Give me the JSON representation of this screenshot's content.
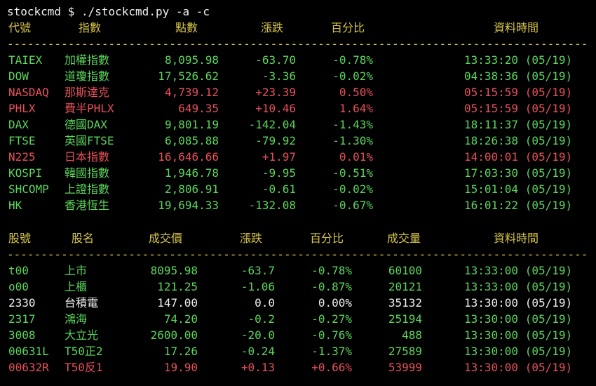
{
  "colors": {
    "background": "#000000",
    "white": "#f0f0f0",
    "green": "#5bd65b",
    "red": "#e8505a",
    "header": "#d8c64a"
  },
  "prompt": {
    "user": "stockcmd",
    "dollar": "$",
    "command": "./stockcmd.py -a -c"
  },
  "index_table": {
    "headers": {
      "code": "代號",
      "name": "指數",
      "points": "點數",
      "change": "漲跌",
      "percent": "百分比",
      "time": "資料時間"
    },
    "separator": "--------------------------------------------------------------------------------------------------------",
    "rows": [
      {
        "code": "TAIEX",
        "name": "加權指數",
        "points": "8,095.98",
        "change": "-63.70",
        "percent": "-0.78%",
        "time": "13:33:20 (05/19)",
        "color": "#5bd65b"
      },
      {
        "code": "DOW",
        "name": "道瓊指數",
        "points": "17,526.62",
        "change": "-3.36",
        "percent": "-0.02%",
        "time": "04:38:36 (05/19)",
        "color": "#5bd65b"
      },
      {
        "code": "NASDAQ",
        "name": "那斯達克",
        "points": "4,739.12",
        "change": "+23.39",
        "percent": "0.50%",
        "time": "05:15:59 (05/19)",
        "color": "#e8505a"
      },
      {
        "code": "PHLX",
        "name": "費半PHLX",
        "points": "649.35",
        "change": "+10.46",
        "percent": "1.64%",
        "time": "05:15:59 (05/19)",
        "color": "#e8505a"
      },
      {
        "code": "DAX",
        "name": "德國DAX",
        "points": "9,801.19",
        "change": "-142.04",
        "percent": "-1.43%",
        "time": "18:11:37 (05/19)",
        "color": "#5bd65b"
      },
      {
        "code": "FTSE",
        "name": "英國FTSE",
        "points": "6,085.88",
        "change": "-79.92",
        "percent": "-1.30%",
        "time": "18:26:38 (05/19)",
        "color": "#5bd65b"
      },
      {
        "code": "N225",
        "name": "日本指數",
        "points": "16,646.66",
        "change": "+1.97",
        "percent": "0.01%",
        "time": "14:00:01 (05/19)",
        "color": "#e8505a"
      },
      {
        "code": "KOSPI",
        "name": "韓國指數",
        "points": "1,946.78",
        "change": "-9.95",
        "percent": "-0.51%",
        "time": "17:03:30 (05/19)",
        "color": "#5bd65b"
      },
      {
        "code": "SHCOMP",
        "name": "上證指數",
        "points": "2,806.91",
        "change": "-0.61",
        "percent": "-0.02%",
        "time": "15:01:04 (05/19)",
        "color": "#5bd65b"
      },
      {
        "code": "HK",
        "name": "香港恆生",
        "points": "19,694.33",
        "change": "-132.08",
        "percent": "-0.67%",
        "time": "16:01:22 (05/19)",
        "color": "#5bd65b"
      }
    ]
  },
  "stock_table": {
    "headers": {
      "code": "股號",
      "name": "股名",
      "price": "成交價",
      "change": "漲跌",
      "percent": "百分比",
      "volume": "成交量",
      "time": "資料時間"
    },
    "separator": "--------------------------------------------------------------------------------------------------------",
    "rows": [
      {
        "code": "t00",
        "name": "上市",
        "price": "8095.98",
        "change": "-63.7",
        "percent": "-0.78%",
        "volume": "60100",
        "time": "13:33:00 (05/19)",
        "color": "#5bd65b"
      },
      {
        "code": "o00",
        "name": "上櫃",
        "price": "121.25",
        "change": "-1.06",
        "percent": "-0.87%",
        "volume": "20121",
        "time": "13:33:00 (05/19)",
        "color": "#5bd65b"
      },
      {
        "code": "2330",
        "name": "台積電",
        "price": "147.00",
        "change": "0.0",
        "percent": "0.00%",
        "volume": "35132",
        "time": "13:30:00 (05/19)",
        "color": "#f0f0f0"
      },
      {
        "code": "2317",
        "name": "鴻海",
        "price": "74.20",
        "change": "-0.2",
        "percent": "-0.27%",
        "volume": "25194",
        "time": "13:30:00 (05/19)",
        "color": "#5bd65b"
      },
      {
        "code": "3008",
        "name": "大立光",
        "price": "2600.00",
        "change": "-20.0",
        "percent": "-0.76%",
        "volume": "488",
        "time": "13:30:00 (05/19)",
        "color": "#5bd65b"
      },
      {
        "code": "00631L",
        "name": "T50正2",
        "price": "17.26",
        "change": "-0.24",
        "percent": "-1.37%",
        "volume": "27589",
        "time": "13:30:00 (05/19)",
        "color": "#5bd65b"
      },
      {
        "code": "00632R",
        "name": "T50反1",
        "price": "19.90",
        "change": "+0.13",
        "percent": "+0.66%",
        "volume": "53999",
        "time": "13:30:00 (05/19)",
        "color": "#e8505a"
      }
    ]
  }
}
